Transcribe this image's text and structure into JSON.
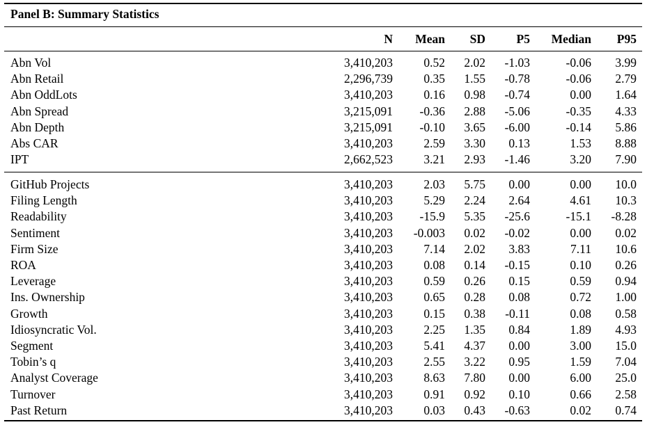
{
  "table": {
    "caption": "Panel B: Summary Statistics",
    "columns": [
      "N",
      "Mean",
      "SD",
      "P5",
      "Median",
      "P95"
    ],
    "groups": [
      {
        "rows": [
          {
            "label": "Abn Vol",
            "values": [
              "3,410,203",
              "0.52",
              "2.02",
              "-1.03",
              "-0.06",
              "3.99"
            ]
          },
          {
            "label": "Abn Retail",
            "values": [
              "2,296,739",
              "0.35",
              "1.55",
              "-0.78",
              "-0.06",
              "2.79"
            ]
          },
          {
            "label": "Abn OddLots",
            "values": [
              "3,410,203",
              "0.16",
              "0.98",
              "-0.74",
              "0.00",
              "1.64"
            ]
          },
          {
            "label": "Abn Spread",
            "values": [
              "3,215,091",
              "-0.36",
              "2.88",
              "-5.06",
              "-0.35",
              "4.33"
            ]
          },
          {
            "label": "Abn Depth",
            "values": [
              "3,215,091",
              "-0.10",
              "3.65",
              "-6.00",
              "-0.14",
              "5.86"
            ]
          },
          {
            "label": "Abs CAR",
            "values": [
              "3,410,203",
              "2.59",
              "3.30",
              "0.13",
              "1.53",
              "8.88"
            ]
          },
          {
            "label": "IPT",
            "values": [
              "2,662,523",
              "3.21",
              "2.93",
              "-1.46",
              "3.20",
              "7.90"
            ]
          }
        ]
      },
      {
        "rows": [
          {
            "label": "GitHub Projects",
            "values": [
              "3,410,203",
              "2.03",
              "5.75",
              "0.00",
              "0.00",
              "10.0"
            ]
          },
          {
            "label": "Filing Length",
            "values": [
              "3,410,203",
              "5.29",
              "2.24",
              "2.64",
              "4.61",
              "10.3"
            ]
          },
          {
            "label": "Readability",
            "values": [
              "3,410,203",
              "-15.9",
              "5.35",
              "-25.6",
              "-15.1",
              "-8.28"
            ]
          },
          {
            "label": "Sentiment",
            "values": [
              "3,410,203",
              "-0.003",
              "0.02",
              "-0.02",
              "0.00",
              "0.02"
            ]
          },
          {
            "label": "Firm Size",
            "values": [
              "3,410,203",
              "7.14",
              "2.02",
              "3.83",
              "7.11",
              "10.6"
            ]
          },
          {
            "label": "ROA",
            "values": [
              "3,410,203",
              "0.08",
              "0.14",
              "-0.15",
              "0.10",
              "0.26"
            ]
          },
          {
            "label": "Leverage",
            "values": [
              "3,410,203",
              "0.59",
              "0.26",
              "0.15",
              "0.59",
              "0.94"
            ]
          },
          {
            "label": "Ins. Ownership",
            "values": [
              "3,410,203",
              "0.65",
              "0.28",
              "0.08",
              "0.72",
              "1.00"
            ]
          },
          {
            "label": "Growth",
            "values": [
              "3,410,203",
              "0.15",
              "0.38",
              "-0.11",
              "0.08",
              "0.58"
            ]
          },
          {
            "label": "Idiosyncratic Vol.",
            "values": [
              "3,410,203",
              "2.25",
              "1.35",
              "0.84",
              "1.89",
              "4.93"
            ]
          },
          {
            "label": "Segment",
            "values": [
              "3,410,203",
              "5.41",
              "4.37",
              "0.00",
              "3.00",
              "15.0"
            ]
          },
          {
            "label": "Tobin’s q",
            "values": [
              "3,410,203",
              "2.55",
              "3.22",
              "0.95",
              "1.59",
              "7.04"
            ]
          },
          {
            "label": "Analyst Coverage",
            "values": [
              "3,410,203",
              "8.63",
              "7.80",
              "0.00",
              "6.00",
              "25.0"
            ]
          },
          {
            "label": "Turnover",
            "values": [
              "3,410,203",
              "0.91",
              "0.92",
              "0.10",
              "0.66",
              "2.58"
            ]
          },
          {
            "label": "Past Return",
            "values": [
              "3,410,203",
              "0.03",
              "0.43",
              "-0.63",
              "0.02",
              "0.74"
            ]
          }
        ]
      }
    ]
  }
}
